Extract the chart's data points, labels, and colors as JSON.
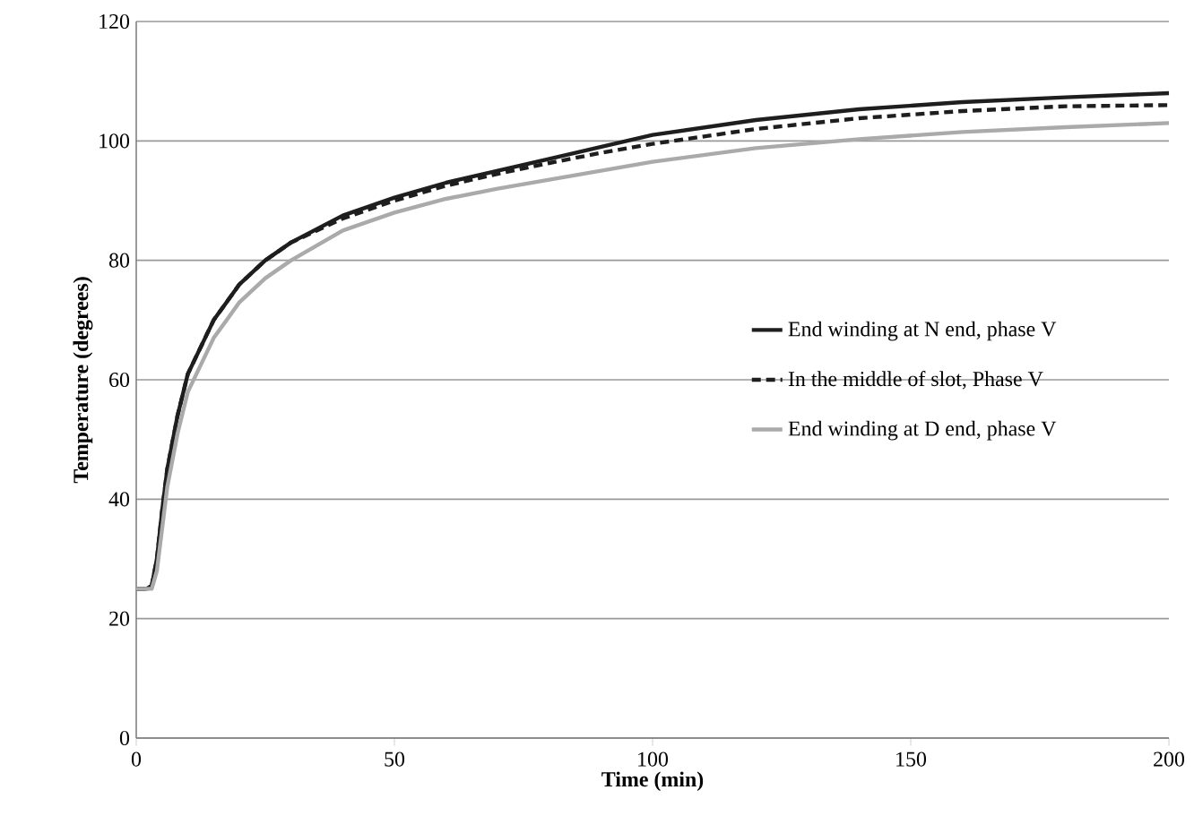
{
  "chart_data": {
    "type": "line",
    "xlabel": "Time (min)",
    "ylabel": "Temperature (degrees)",
    "xlim": [
      0,
      200
    ],
    "ylim": [
      0,
      120
    ],
    "xticks": [
      0,
      50,
      100,
      150,
      200
    ],
    "yticks": [
      0,
      20,
      40,
      60,
      80,
      100,
      120
    ],
    "grid": "y",
    "legend": "right",
    "marker": "none",
    "series": [
      {
        "name": "End winding at N end, phase V",
        "color": "#1e1e1e",
        "line_style": "solid",
        "x": [
          0,
          2,
          3,
          4,
          5,
          6,
          8,
          10,
          15,
          20,
          25,
          30,
          40,
          50,
          60,
          70,
          80,
          90,
          100,
          120,
          140,
          160,
          180,
          200
        ],
        "values": [
          25,
          25,
          25.5,
          30,
          38,
          45,
          54,
          61,
          70,
          76,
          80,
          83,
          87.5,
          90.5,
          93,
          95,
          97,
          99,
          101,
          103.5,
          105.3,
          106.5,
          107.3,
          108
        ]
      },
      {
        "name": "In the middle of slot, Phase V",
        "color": "#1e1e1e",
        "line_style": "dashed",
        "x": [
          0,
          2,
          3,
          4,
          5,
          6,
          8,
          10,
          15,
          20,
          25,
          30,
          40,
          50,
          60,
          70,
          80,
          90,
          100,
          120,
          140,
          160,
          180,
          200
        ],
        "values": [
          25,
          25,
          25.5,
          30,
          38,
          45,
          54,
          61,
          70,
          76,
          80,
          83,
          87,
          90,
          92.5,
          94.5,
          96.3,
          98,
          99.5,
          102,
          103.8,
          105,
          105.8,
          106
        ]
      },
      {
        "name": "End winding at D end, phase V",
        "color": "#aaaaaa",
        "line_style": "solid",
        "x": [
          0,
          2,
          3,
          4,
          5,
          6,
          8,
          10,
          15,
          20,
          25,
          30,
          40,
          50,
          60,
          70,
          80,
          90,
          100,
          120,
          140,
          160,
          180,
          200
        ],
        "values": [
          25,
          25,
          25,
          28,
          35,
          42,
          51,
          58,
          67,
          73,
          77,
          80,
          85,
          88,
          90.3,
          92,
          93.5,
          95,
          96.5,
          98.8,
          100.3,
          101.5,
          102.3,
          103
        ]
      }
    ]
  }
}
